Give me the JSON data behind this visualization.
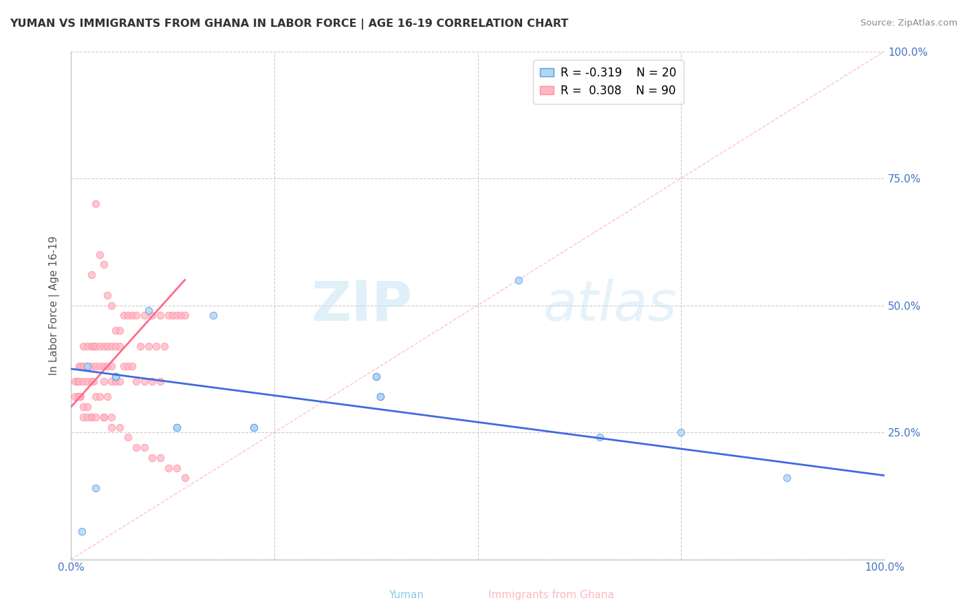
{
  "title": "YUMAN VS IMMIGRANTS FROM GHANA IN LABOR FORCE | AGE 16-19 CORRELATION CHART",
  "source": "Source: ZipAtlas.com",
  "xlabel_yuman": "Yuman",
  "xlabel_ghana": "Immigrants from Ghana",
  "ylabel": "In Labor Force | Age 16-19",
  "watermark_zip": "ZIP",
  "watermark_atlas": "atlas",
  "xlim": [
    0.0,
    1.0
  ],
  "ylim": [
    0.0,
    1.0
  ],
  "xtick_vals": [
    0.0,
    0.25,
    0.5,
    0.75,
    1.0
  ],
  "ytick_vals": [
    0.0,
    0.25,
    0.5,
    0.75,
    1.0
  ],
  "legend_R_yuman": "R = -0.319",
  "legend_N_yuman": "N = 20",
  "legend_R_ghana": "R =  0.308",
  "legend_N_ghana": "N = 90",
  "color_yuman_fill": "#ADD8F0",
  "color_yuman_edge": "#6495ED",
  "color_yuman_line": "#4169E1",
  "color_ghana_fill": "#FFB6C1",
  "color_ghana_edge": "#FF8FA3",
  "color_ghana_line": "#FF6B8A",
  "color_diag": "#FFAAAA",
  "yuman_x": [
    0.013,
    0.03,
    0.055,
    0.055,
    0.055,
    0.095,
    0.175,
    0.375,
    0.375,
    0.55,
    0.65,
    0.75,
    0.88,
    0.02,
    0.13,
    0.13,
    0.225,
    0.225,
    0.38,
    0.38
  ],
  "yuman_y": [
    0.055,
    0.14,
    0.36,
    0.36,
    0.36,
    0.49,
    0.48,
    0.36,
    0.36,
    0.55,
    0.24,
    0.25,
    0.16,
    0.38,
    0.26,
    0.26,
    0.26,
    0.26,
    0.32,
    0.32
  ],
  "ghana_x": [
    0.005,
    0.008,
    0.008,
    0.01,
    0.01,
    0.012,
    0.012,
    0.015,
    0.015,
    0.015,
    0.015,
    0.02,
    0.02,
    0.02,
    0.02,
    0.025,
    0.025,
    0.025,
    0.025,
    0.028,
    0.028,
    0.03,
    0.03,
    0.03,
    0.035,
    0.035,
    0.035,
    0.04,
    0.04,
    0.04,
    0.04,
    0.045,
    0.045,
    0.045,
    0.05,
    0.05,
    0.05,
    0.05,
    0.055,
    0.055,
    0.055,
    0.06,
    0.06,
    0.06,
    0.065,
    0.065,
    0.07,
    0.07,
    0.075,
    0.075,
    0.08,
    0.08,
    0.085,
    0.09,
    0.09,
    0.095,
    0.1,
    0.1,
    0.105,
    0.11,
    0.11,
    0.115,
    0.12,
    0.125,
    0.13,
    0.135,
    0.14,
    0.005,
    0.01,
    0.015,
    0.02,
    0.025,
    0.03,
    0.04,
    0.05,
    0.06,
    0.07,
    0.08,
    0.09,
    0.1,
    0.11,
    0.12,
    0.13,
    0.14,
    0.025,
    0.03,
    0.035,
    0.04,
    0.045,
    0.05
  ],
  "ghana_y": [
    0.35,
    0.35,
    0.32,
    0.38,
    0.35,
    0.38,
    0.32,
    0.42,
    0.38,
    0.35,
    0.28,
    0.42,
    0.38,
    0.35,
    0.28,
    0.42,
    0.38,
    0.35,
    0.28,
    0.42,
    0.35,
    0.42,
    0.38,
    0.32,
    0.42,
    0.38,
    0.32,
    0.42,
    0.38,
    0.35,
    0.28,
    0.42,
    0.38,
    0.32,
    0.42,
    0.38,
    0.35,
    0.28,
    0.45,
    0.42,
    0.35,
    0.45,
    0.42,
    0.35,
    0.48,
    0.38,
    0.48,
    0.38,
    0.48,
    0.38,
    0.48,
    0.35,
    0.42,
    0.48,
    0.35,
    0.42,
    0.48,
    0.35,
    0.42,
    0.48,
    0.35,
    0.42,
    0.48,
    0.48,
    0.48,
    0.48,
    0.48,
    0.32,
    0.32,
    0.3,
    0.3,
    0.28,
    0.28,
    0.28,
    0.26,
    0.26,
    0.24,
    0.22,
    0.22,
    0.2,
    0.2,
    0.18,
    0.18,
    0.16,
    0.56,
    0.7,
    0.6,
    0.58,
    0.52,
    0.5
  ],
  "yuman_trend_x": [
    0.0,
    1.0
  ],
  "yuman_trend_y": [
    0.375,
    0.165
  ],
  "ghana_trend_x": [
    0.0,
    0.14
  ],
  "ghana_trend_y": [
    0.3,
    0.55
  ]
}
